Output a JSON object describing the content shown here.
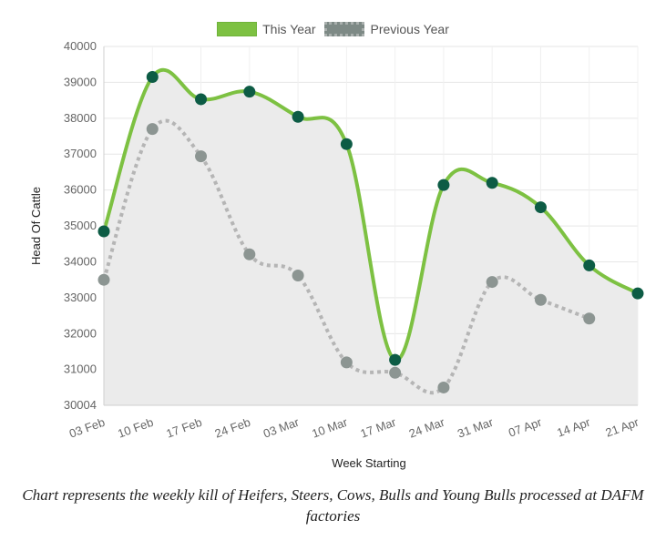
{
  "legend": {
    "this_year": "This Year",
    "previous_year": "Previous Year"
  },
  "caption": "Chart represents the weekly kill of Heifers, Steers, Cows, Bulls and Young Bulls processed at DAFM factories",
  "chart_data": {
    "type": "line",
    "title": "",
    "xlabel": "Week Starting",
    "ylabel": "Head Of Cattle",
    "ylim": [
      30004,
      40000
    ],
    "y_ticks": [
      30004,
      31000,
      32000,
      33000,
      34000,
      35000,
      36000,
      37000,
      38000,
      39000,
      40000
    ],
    "grid": true,
    "legend_position": "top",
    "categories": [
      "03 Feb",
      "10 Feb",
      "17 Feb",
      "24 Feb",
      "03 Mar",
      "10 Mar",
      "17 Mar",
      "24 Mar",
      "31 Mar",
      "07 Apr",
      "14 Apr",
      "21 Apr"
    ],
    "series": [
      {
        "name": "This Year",
        "color": "#7dc142",
        "point_color": "#0d5c45",
        "fill": "#ebebeb",
        "values": [
          34850,
          39150,
          38530,
          38740,
          38040,
          37280,
          31270,
          36140,
          36200,
          35520,
          33900,
          33120
        ]
      },
      {
        "name": "Previous Year",
        "color": "#b5b5b5",
        "point_color": "#8c9592",
        "values": [
          33500,
          37700,
          36940,
          34210,
          33620,
          31200,
          30910,
          30500,
          33440,
          32940,
          32420,
          null
        ]
      }
    ]
  }
}
